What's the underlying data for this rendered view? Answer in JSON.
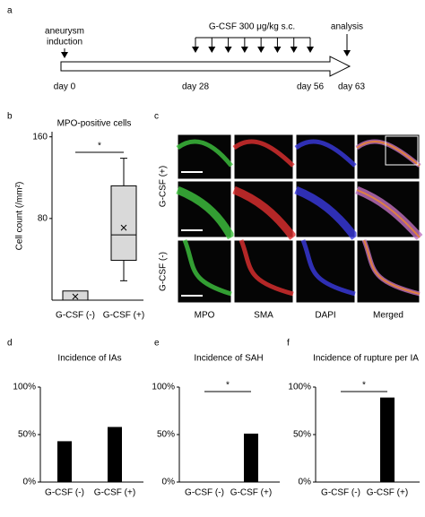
{
  "timeline": {
    "label": "a",
    "induction": [
      "aneurysm",
      "induction"
    ],
    "treatment": "G-CSF 300 μg/kg s.c.",
    "analysis": "analysis",
    "days": [
      "day 0",
      "day 28",
      "day 56",
      "day 63"
    ]
  },
  "micrographs": {
    "label": "c",
    "row_labels": [
      "G-CSF (+)",
      "G-CSF (-)"
    ],
    "column_labels": [
      "MPO",
      "SMA",
      "DAPI",
      "Merged"
    ]
  },
  "chart_data": [
    {
      "type": "box",
      "panel_label": "b",
      "title": "MPO-positive cells",
      "y_label": "Cell count (/mm²)",
      "categories": [
        "G-CSF (-)",
        "G-CSF (+)"
      ],
      "boxes": [
        {
          "q1": 0,
          "q3": 9,
          "mean": 3.5
        },
        {
          "min": 19,
          "q1": 39,
          "median": 64,
          "q3": 112,
          "max": 139,
          "mean": 71
        }
      ],
      "color": "#d9d9d9",
      "ylim": [
        0,
        165
      ],
      "yticks": [
        80,
        160
      ],
      "significance": "*"
    },
    {
      "type": "bar",
      "panel_label": "d",
      "title": "Incidence of IAs",
      "categories": [
        "G-CSF (-)",
        "G-CSF (+)"
      ],
      "values": [
        43,
        58
      ],
      "color": "#000000",
      "ylim": [
        0,
        100
      ],
      "yticks": [
        {
          "value": 0,
          "label": "0%"
        },
        {
          "value": 50,
          "label": "50%"
        },
        {
          "value": 100,
          "label": "100%"
        }
      ]
    },
    {
      "type": "bar",
      "panel_label": "e",
      "title": "Incidence of SAH",
      "categories": [
        "G-CSF (-)",
        "G-CSF (+)"
      ],
      "values": [
        0,
        51
      ],
      "color": "#000000",
      "ylim": [
        0,
        100
      ],
      "yticks": [
        {
          "value": 0,
          "label": "0%"
        },
        {
          "value": 50,
          "label": "50%"
        },
        {
          "value": 100,
          "label": "100%"
        }
      ],
      "significance": "*"
    },
    {
      "type": "bar",
      "panel_label": "f",
      "title": "Incidence of rupture per IA",
      "categories": [
        "G-CSF (-)",
        "G-CSF (+)"
      ],
      "values": [
        0,
        89
      ],
      "color": "#000000",
      "ylim": [
        0,
        100
      ],
      "yticks": [
        {
          "value": 0,
          "label": "0%"
        },
        {
          "value": 50,
          "label": "50%"
        },
        {
          "value": 100,
          "label": "100%"
        }
      ],
      "significance": "*"
    }
  ]
}
